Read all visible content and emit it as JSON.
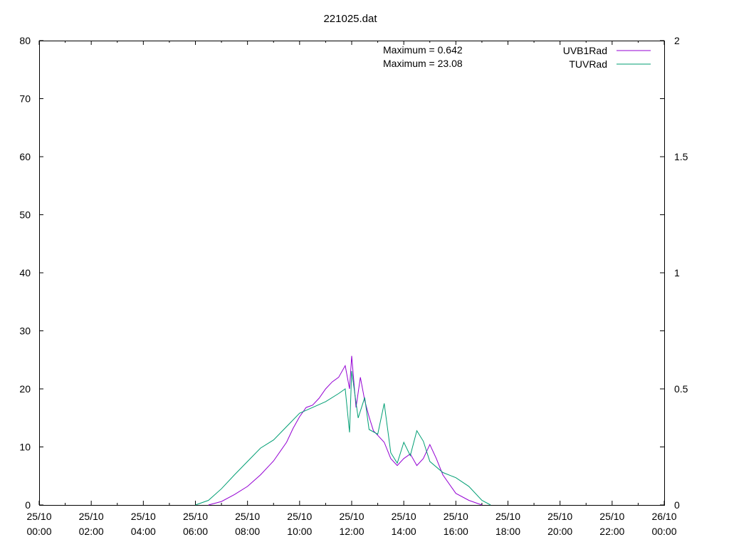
{
  "chart_data": {
    "type": "line",
    "title": "221025.dat",
    "xlabel": "",
    "ylabel": "",
    "x_range": [
      "2022-10-25T00:00",
      "2022-10-26T00:00"
    ],
    "x_tick_labels": [
      [
        "25/10",
        "00:00"
      ],
      [
        "25/10",
        "02:00"
      ],
      [
        "25/10",
        "04:00"
      ],
      [
        "25/10",
        "06:00"
      ],
      [
        "25/10",
        "08:00"
      ],
      [
        "25/10",
        "10:00"
      ],
      [
        "25/10",
        "12:00"
      ],
      [
        "25/10",
        "14:00"
      ],
      [
        "25/10",
        "16:00"
      ],
      [
        "25/10",
        "18:00"
      ],
      [
        "25/10",
        "20:00"
      ],
      [
        "25/10",
        "22:00"
      ],
      [
        "26/10",
        "00:00"
      ]
    ],
    "y_left": {
      "range": [
        0,
        80
      ],
      "ticks": [
        "0",
        "10",
        "20",
        "30",
        "40",
        "50",
        "60",
        "70",
        "80"
      ]
    },
    "y_right": {
      "range": [
        0,
        2
      ],
      "ticks": [
        "0",
        "0.5",
        "1",
        "1.5",
        "2"
      ]
    },
    "grid": false,
    "legend_position": "top-right",
    "annotations": [
      "Maximum = 0.642",
      "Maximum = 23.08"
    ],
    "series": [
      {
        "name": "UVB1Rad",
        "axis": "right",
        "color": "#9400d3",
        "points": [
          [
            "06:30",
            0.0
          ],
          [
            "07:00",
            0.015
          ],
          [
            "07:30",
            0.045
          ],
          [
            "08:00",
            0.08
          ],
          [
            "08:30",
            0.13
          ],
          [
            "09:00",
            0.19
          ],
          [
            "09:30",
            0.27
          ],
          [
            "09:45",
            0.33
          ],
          [
            "10:00",
            0.38
          ],
          [
            "10:15",
            0.42
          ],
          [
            "10:30",
            0.43
          ],
          [
            "10:45",
            0.46
          ],
          [
            "11:00",
            0.5
          ],
          [
            "11:15",
            0.53
          ],
          [
            "11:30",
            0.55
          ],
          [
            "11:45",
            0.6
          ],
          [
            "11:55",
            0.5
          ],
          [
            "12:00",
            0.642
          ],
          [
            "12:10",
            0.42
          ],
          [
            "12:20",
            0.55
          ],
          [
            "12:30",
            0.45
          ],
          [
            "12:40",
            0.38
          ],
          [
            "12:50",
            0.32
          ],
          [
            "13:00",
            0.3
          ],
          [
            "13:15",
            0.27
          ],
          [
            "13:30",
            0.2
          ],
          [
            "13:45",
            0.17
          ],
          [
            "14:00",
            0.2
          ],
          [
            "14:15",
            0.22
          ],
          [
            "14:30",
            0.17
          ],
          [
            "14:45",
            0.2
          ],
          [
            "15:00",
            0.26
          ],
          [
            "15:15",
            0.2
          ],
          [
            "15:30",
            0.13
          ],
          [
            "16:00",
            0.05
          ],
          [
            "16:30",
            0.02
          ],
          [
            "17:00",
            0.0
          ]
        ]
      },
      {
        "name": "TUVRad",
        "axis": "left",
        "color": "#009e73",
        "points": [
          [
            "06:00",
            0.0
          ],
          [
            "06:30",
            0.8
          ],
          [
            "07:00",
            2.8
          ],
          [
            "07:30",
            5.2
          ],
          [
            "08:00",
            7.5
          ],
          [
            "08:30",
            9.8
          ],
          [
            "09:00",
            11.2
          ],
          [
            "09:30",
            13.5
          ],
          [
            "10:00",
            15.8
          ],
          [
            "10:30",
            16.8
          ],
          [
            "11:00",
            17.8
          ],
          [
            "11:30",
            19.2
          ],
          [
            "11:45",
            20.0
          ],
          [
            "11:55",
            12.5
          ],
          [
            "12:00",
            23.08
          ],
          [
            "12:15",
            15.0
          ],
          [
            "12:30",
            18.5
          ],
          [
            "12:40",
            13.0
          ],
          [
            "13:00",
            12.2
          ],
          [
            "13:15",
            17.5
          ],
          [
            "13:30",
            9.0
          ],
          [
            "13:45",
            7.2
          ],
          [
            "14:00",
            10.8
          ],
          [
            "14:15",
            8.5
          ],
          [
            "14:30",
            12.8
          ],
          [
            "14:45",
            11.0
          ],
          [
            "15:00",
            7.5
          ],
          [
            "15:30",
            5.6
          ],
          [
            "16:00",
            4.7
          ],
          [
            "16:30",
            3.2
          ],
          [
            "17:00",
            0.8
          ],
          [
            "17:20",
            0.0
          ]
        ]
      }
    ]
  }
}
